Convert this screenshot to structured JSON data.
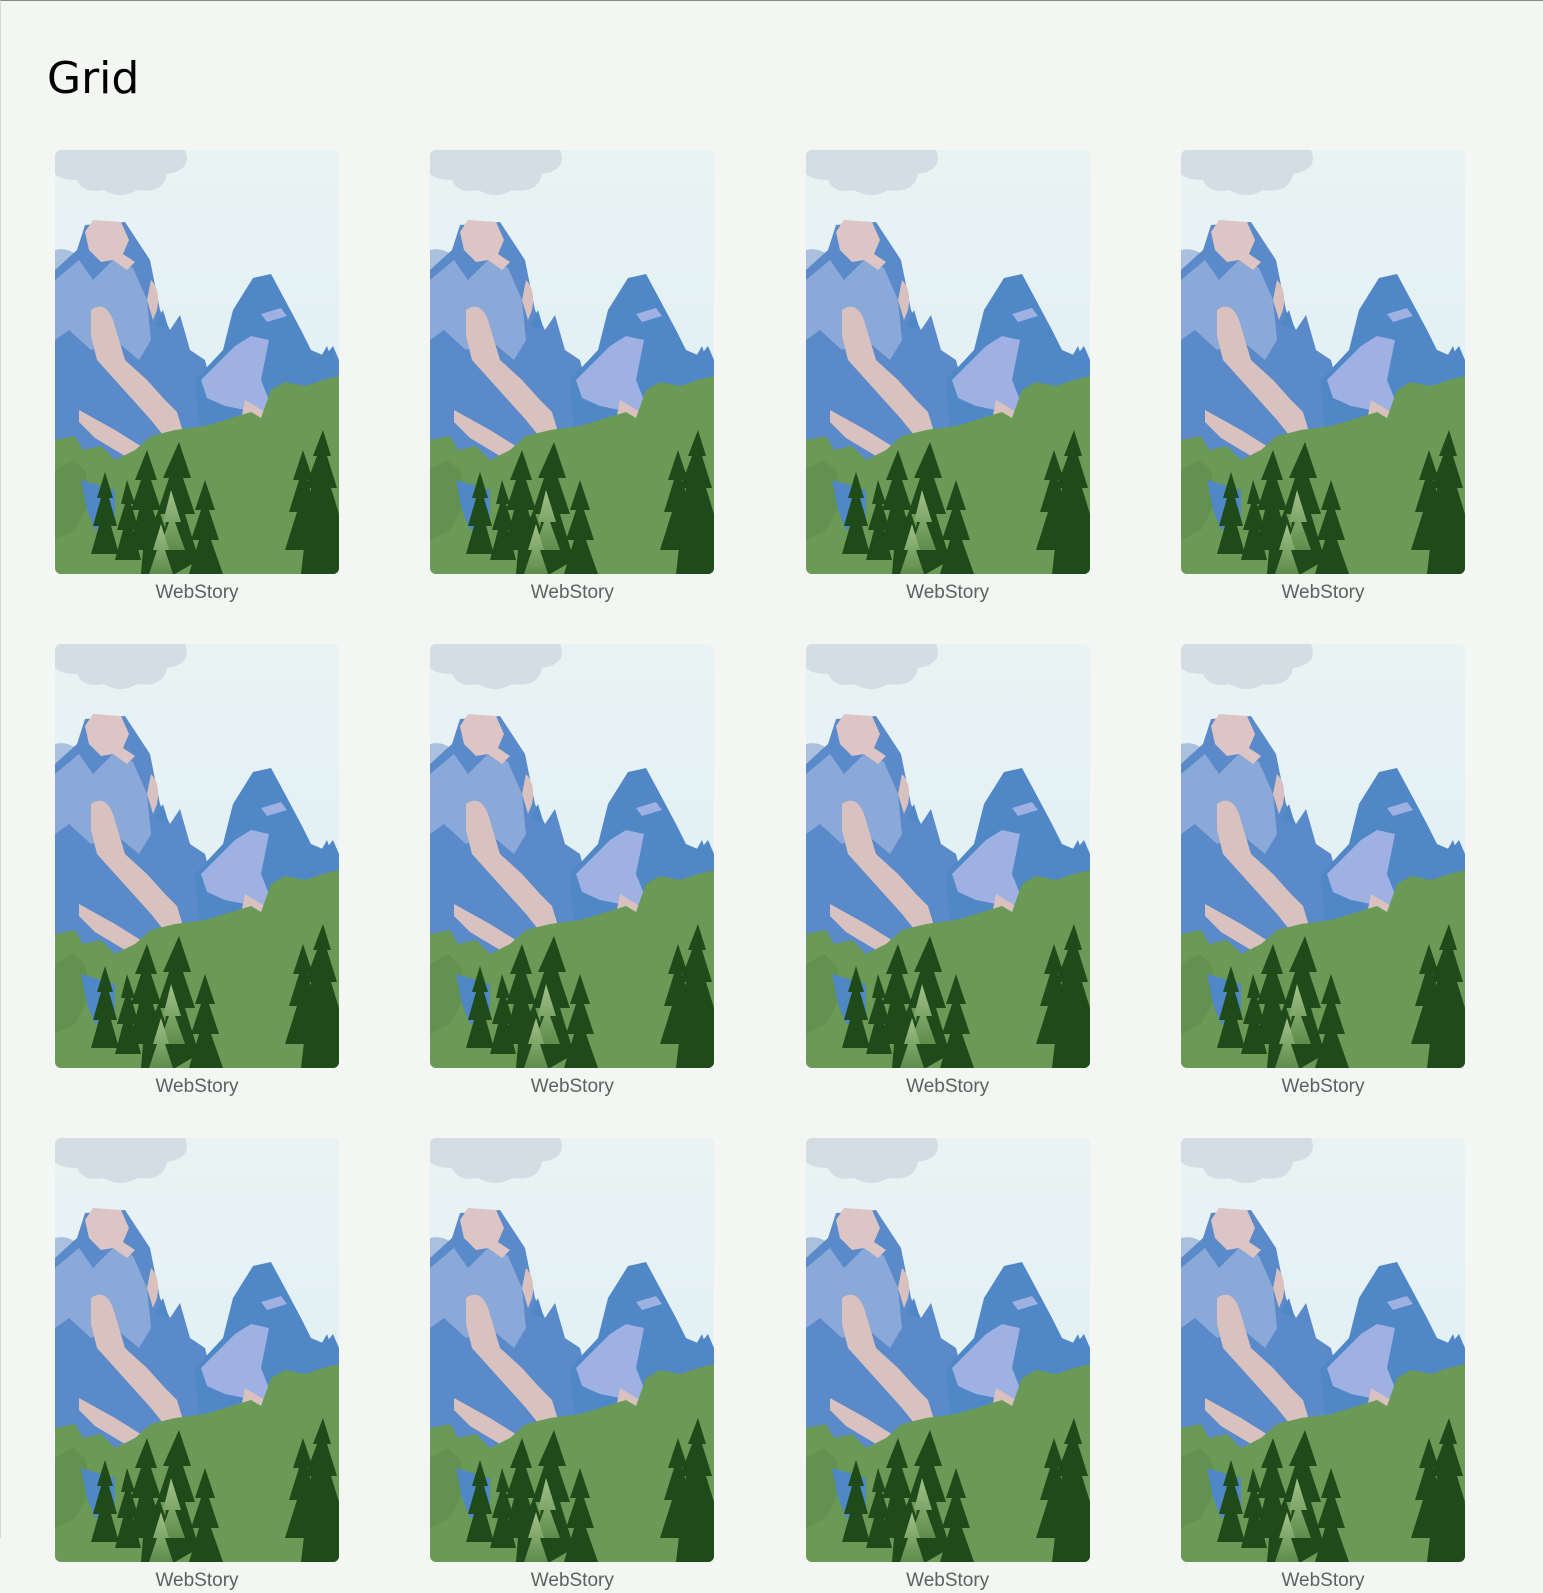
{
  "page": {
    "title": "Grid"
  },
  "stories": [
    {
      "label": "WebStory"
    },
    {
      "label": "WebStory"
    },
    {
      "label": "WebStory"
    },
    {
      "label": "WebStory"
    },
    {
      "label": "WebStory"
    },
    {
      "label": "WebStory"
    },
    {
      "label": "WebStory"
    },
    {
      "label": "WebStory"
    },
    {
      "label": "WebStory"
    },
    {
      "label": "WebStory"
    },
    {
      "label": "WebStory"
    },
    {
      "label": "WebStory"
    }
  ],
  "colors": {
    "background": "#f4f6f3",
    "sky": "#e4f1f4",
    "cloud": "#d3dbe3",
    "mountain_blue": "#5b8dcb",
    "mountain_light_blue": "#8aa9d8",
    "mountain_pink": "#d9c3c3",
    "forest_green": "#6b9a57",
    "tree_dark": "#1f4a19",
    "label_text": "#5f6160"
  }
}
